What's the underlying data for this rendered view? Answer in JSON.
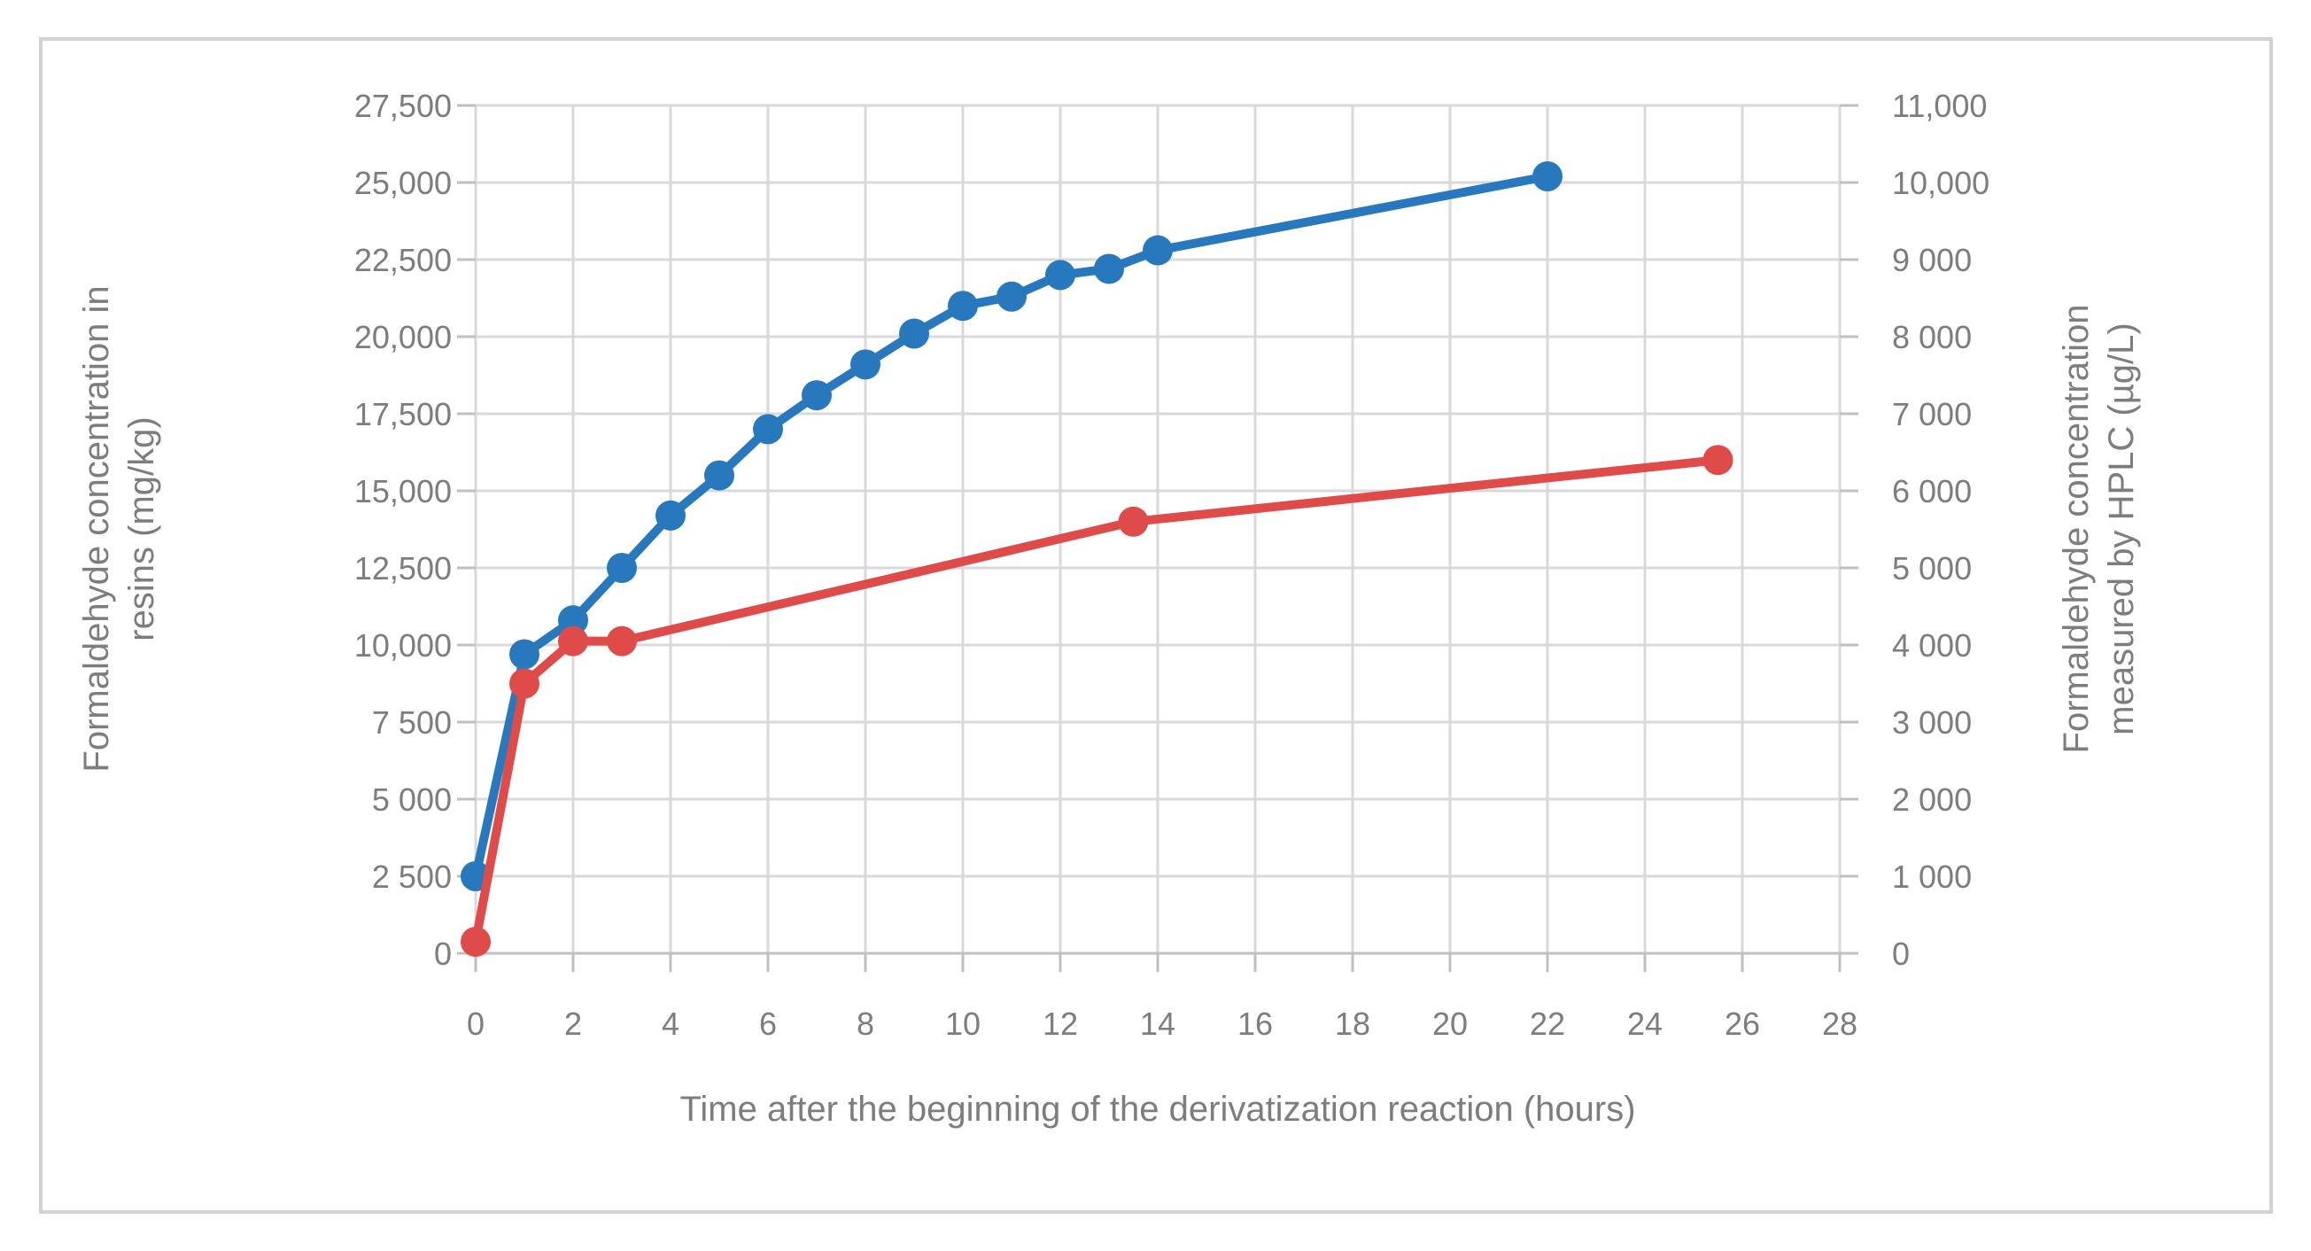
{
  "chart_data": {
    "type": "line",
    "title": "",
    "xlabel": "Time after the beginning of the derivatization reaction (hours)",
    "ylabel_left_lines": [
      "Formaldehyde concentration in",
      "resins (mg/kg)"
    ],
    "ylabel_right_lines": [
      "Formaldehyde concentration",
      "measured by HPLC (µg/L)"
    ],
    "grid": true,
    "legend": false,
    "x_axis": {
      "min": 0,
      "max": 28,
      "tick_values": [
        0,
        2,
        4,
        6,
        8,
        10,
        12,
        14,
        16,
        18,
        20,
        22,
        24,
        26,
        28
      ],
      "tick_labels": [
        "0",
        "2",
        "4",
        "6",
        "8",
        "10",
        "12",
        "14",
        "16",
        "18",
        "20",
        "22",
        "24",
        "26",
        "28"
      ]
    },
    "y_axis_left": {
      "min": 0,
      "max": 27500,
      "tick_values": [
        0,
        2500,
        5000,
        7500,
        10000,
        12500,
        15000,
        17500,
        20000,
        22500,
        25000,
        27500
      ],
      "tick_labels": [
        "0",
        "2 500",
        "5 000",
        "7 500",
        "10,000",
        "12,500",
        "15,000",
        "17,500",
        "20,000",
        "22,500",
        "25,000",
        "27,500"
      ]
    },
    "y_axis_right": {
      "min": 0,
      "max": 11000,
      "tick_values": [
        0,
        1000,
        2000,
        3000,
        4000,
        5000,
        6000,
        7000,
        8000,
        9000,
        10000,
        11000
      ],
      "tick_labels": [
        "0",
        "1 000",
        "2 000",
        "3 000",
        "4 000",
        "5 000",
        "6 000",
        "7 000",
        "8 000",
        "9 000",
        "10,000",
        "11,000"
      ]
    },
    "series": [
      {
        "name": "Formaldehyde concentration in resins (left axis)",
        "axis": "left",
        "color": "#2878BE",
        "x": [
          0,
          1,
          2,
          3,
          4,
          5,
          6,
          7,
          8,
          9,
          10,
          11,
          12,
          13,
          14,
          22
        ],
        "y": [
          2500,
          9700,
          10800,
          12500,
          14200,
          15500,
          17000,
          18100,
          19100,
          20100,
          21000,
          21300,
          22000,
          22200,
          22800,
          25200
        ]
      },
      {
        "name": "Formaldehyde concentration measured by HPLC (right axis)",
        "axis": "right",
        "color": "#DE4B48",
        "x": [
          0,
          1,
          2,
          3,
          13.5,
          25.5
        ],
        "y": [
          150,
          3500,
          4050,
          4050,
          5600,
          6400
        ]
      }
    ]
  },
  "colors": {
    "background": "#FFFFFF",
    "chart_border": "#D2D2D2",
    "gridline": "#D9D9D9",
    "axis_line": "#BFBFBF",
    "text": "#7D7D7D",
    "series_resins": "#2878BE",
    "series_hplc": "#DE4B48"
  }
}
